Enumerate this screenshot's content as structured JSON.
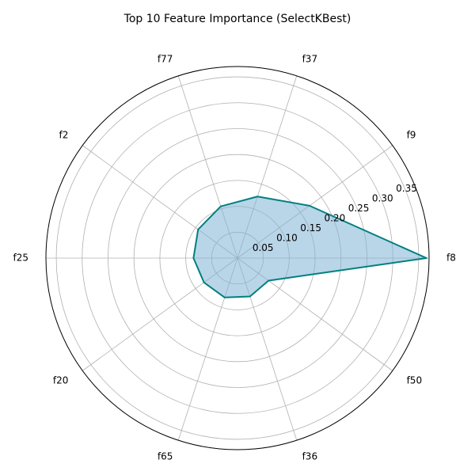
{
  "chart_data": {
    "type": "radar",
    "title": "Top 10 Feature Importance (SelectKBest)",
    "categories": [
      "f8",
      "f9",
      "f37",
      "f77",
      "f2",
      "f25",
      "f20",
      "f65",
      "f36",
      "f50"
    ],
    "series": [
      {
        "values": [
          0.365,
          0.172,
          0.125,
          0.105,
          0.094,
          0.085,
          0.08,
          0.08,
          0.078,
          0.074
        ]
      }
    ],
    "rlim": [
      0,
      0.37
    ],
    "rticks": [
      "0.05",
      "0.10",
      "0.15",
      "0.20",
      "0.25",
      "0.30",
      "0.35"
    ],
    "rtick_values": [
      0.05,
      0.1,
      0.15,
      0.2,
      0.25,
      0.3,
      0.35
    ],
    "grid": true,
    "line_color": "#008080",
    "fill_color": "#7fb3d5"
  }
}
